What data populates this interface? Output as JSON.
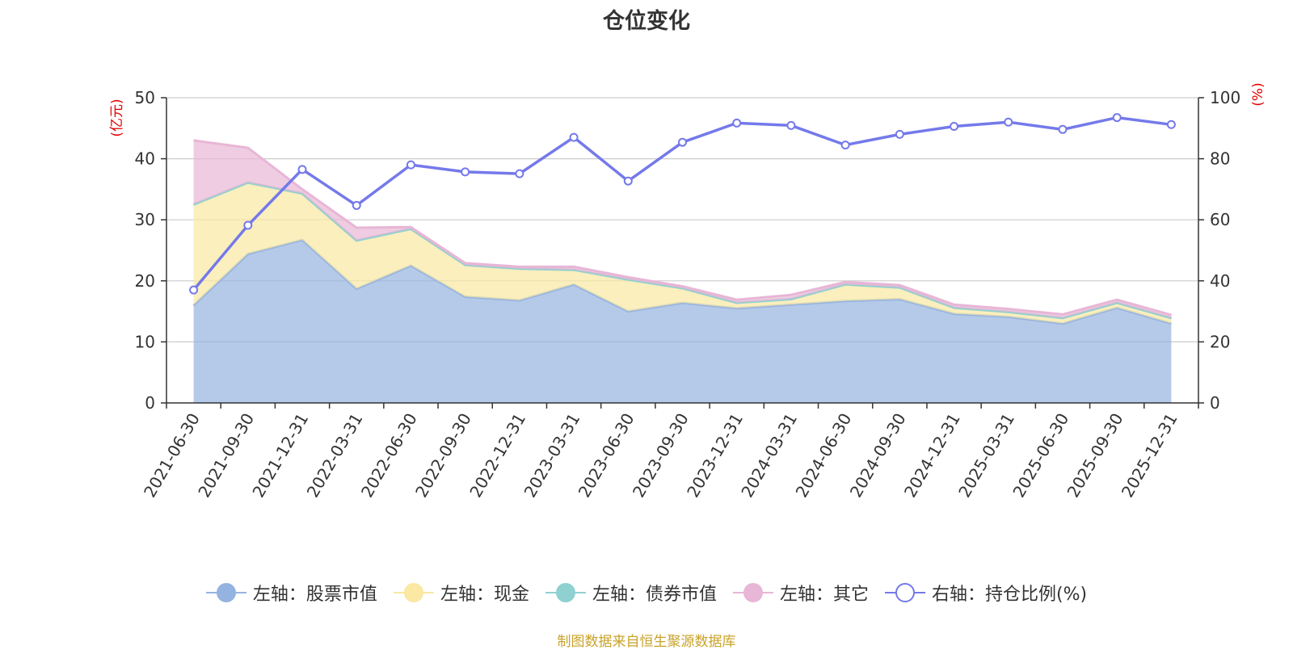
{
  "chart_data": {
    "type": "area",
    "title": "仓位变化",
    "left_axis_label": "(亿元)",
    "right_axis_label": "(%)",
    "left_ylim": [
      0,
      50
    ],
    "left_yticks": [
      0,
      10,
      20,
      30,
      40,
      50
    ],
    "right_ylim": [
      0,
      100
    ],
    "right_yticks": [
      0,
      20,
      40,
      60,
      80,
      100
    ],
    "categories": [
      "2021-06-30",
      "2021-09-30",
      "2021-12-31",
      "2022-03-31",
      "2022-06-30",
      "2022-09-30",
      "2022-12-31",
      "2023-03-31",
      "2023-06-30",
      "2023-09-30",
      "2023-12-31",
      "2024-03-31",
      "2024-06-30",
      "2024-09-30",
      "2024-12-31",
      "2025-03-31",
      "2025-06-30",
      "2025-09-30",
      "2025-12-31"
    ],
    "series": [
      {
        "name": "左轴：股票市值",
        "axis": "left",
        "kind": "stacked-area",
        "color": "#95b3e0",
        "values": [
          16.0,
          24.4,
          26.7,
          18.7,
          22.5,
          17.4,
          16.8,
          19.4,
          15.0,
          16.4,
          15.5,
          16.1,
          16.7,
          17.0,
          14.6,
          14.1,
          13.0,
          15.6,
          13.0
        ]
      },
      {
        "name": "左轴：现金",
        "axis": "left",
        "kind": "stacked-area",
        "color": "#fae8a3",
        "values": [
          16.5,
          11.7,
          7.6,
          7.9,
          6.0,
          5.2,
          5.2,
          2.4,
          5.2,
          2.4,
          0.9,
          0.9,
          2.7,
          1.9,
          1.0,
          0.8,
          0.9,
          0.8,
          0.9
        ]
      },
      {
        "name": "左轴：债券市值",
        "axis": "left",
        "kind": "stacked-area",
        "color": "#8fd1d1",
        "values": [
          0.0,
          0.0,
          0.0,
          0.0,
          0.0,
          0.0,
          0.0,
          0.0,
          0.0,
          0.0,
          0.0,
          0.0,
          0.0,
          0.0,
          0.0,
          0.0,
          0.0,
          0.0,
          0.0
        ]
      },
      {
        "name": "左轴：其它",
        "axis": "left",
        "kind": "stacked-area",
        "color": "#e8b6d6",
        "values": [
          10.5,
          5.7,
          0.7,
          2.1,
          0.3,
          0.3,
          0.3,
          0.5,
          0.4,
          0.3,
          0.5,
          0.7,
          0.4,
          0.4,
          0.5,
          0.5,
          0.6,
          0.5,
          0.5
        ]
      },
      {
        "name": "右轴：持仓比例(%)",
        "axis": "right",
        "kind": "line",
        "color": "#7479ea",
        "values": [
          37.0,
          58.2,
          76.5,
          64.7,
          78.0,
          75.7,
          75.1,
          87.0,
          72.7,
          85.4,
          91.7,
          90.9,
          84.5,
          88.0,
          90.6,
          92.0,
          89.6,
          93.5,
          91.2
        ]
      }
    ]
  },
  "source_text": "制图数据来自恒生聚源数据库"
}
